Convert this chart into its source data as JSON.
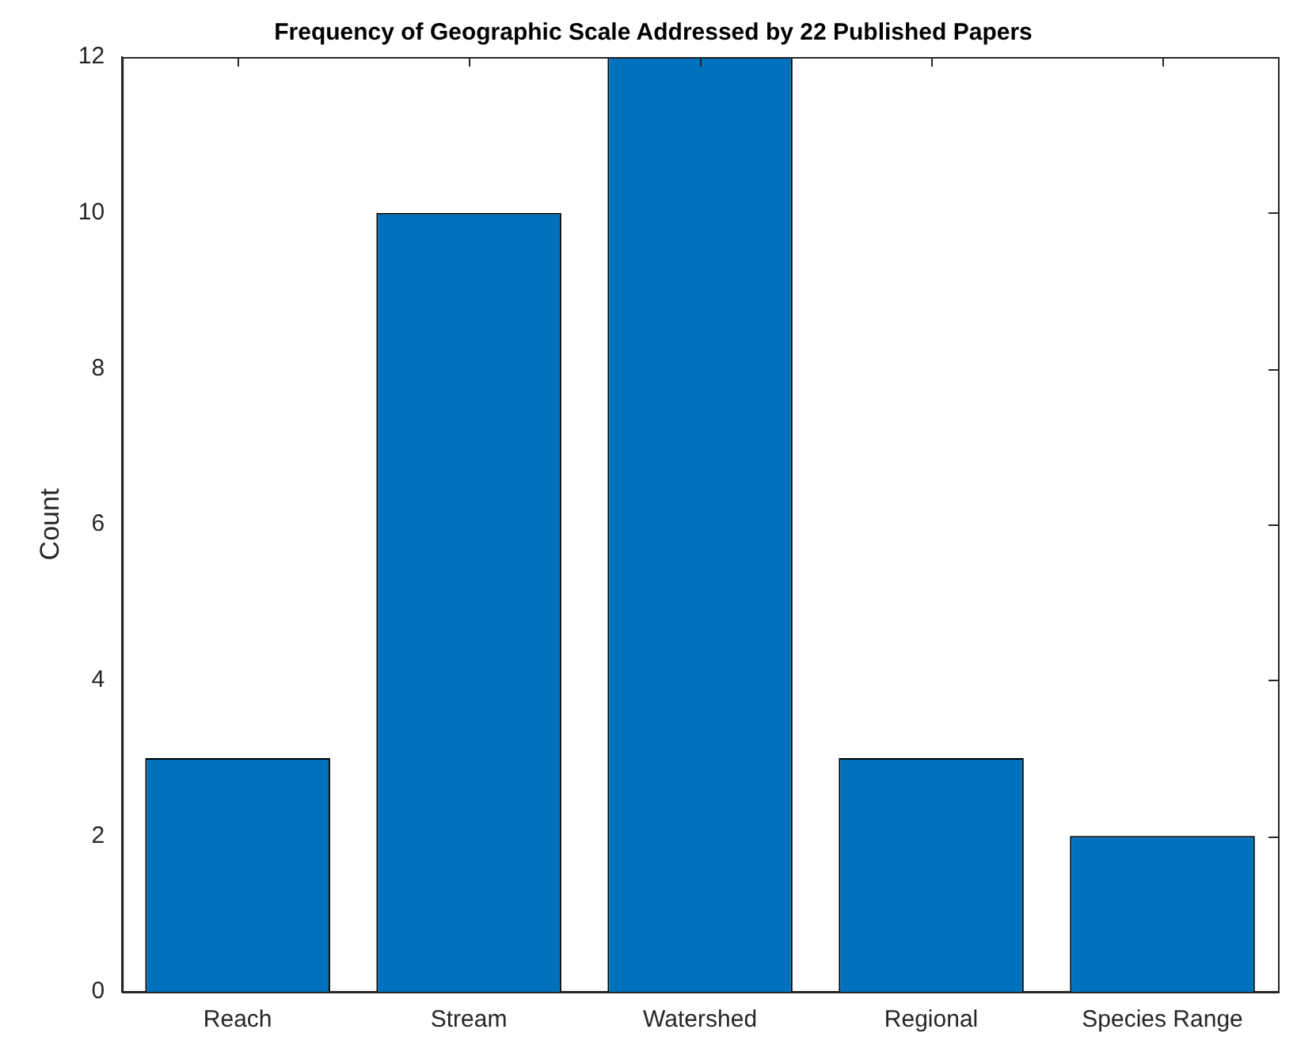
{
  "chart_data": {
    "type": "bar",
    "title": "Frequency of Geographic Scale Addressed by 22 Published Papers",
    "ylabel": "Count",
    "categories": [
      "Reach",
      "Stream",
      "Watershed",
      "Regional",
      "Species Range"
    ],
    "values": [
      3,
      10,
      12,
      3,
      2
    ],
    "color": "#0072bd",
    "ylim": [
      0,
      12
    ],
    "yticks": [
      0,
      2,
      4,
      6,
      8,
      10,
      12
    ],
    "grid": false,
    "legend": false
  }
}
